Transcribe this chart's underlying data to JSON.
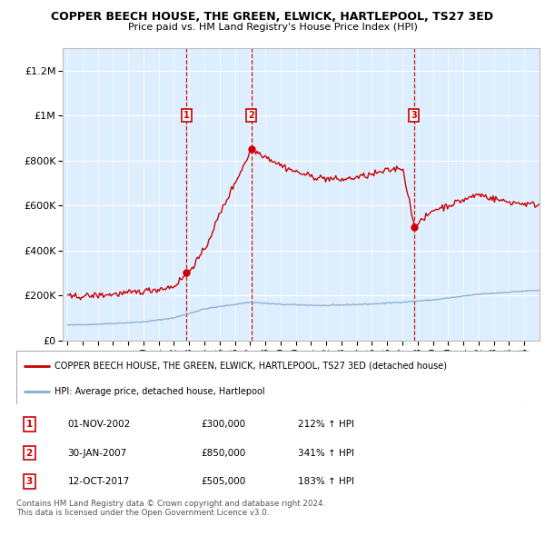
{
  "title": "COPPER BEECH HOUSE, THE GREEN, ELWICK, HARTLEPOOL, TS27 3ED",
  "subtitle": "Price paid vs. HM Land Registry's House Price Index (HPI)",
  "legend_line1": "COPPER BEECH HOUSE, THE GREEN, ELWICK, HARTLEPOOL, TS27 3ED (detached house)",
  "legend_line2": "HPI: Average price, detached house, Hartlepool",
  "transactions": [
    {
      "num": 1,
      "date": "01-NOV-2002",
      "price": 300000,
      "pct": "212%",
      "dir": "↑"
    },
    {
      "num": 2,
      "date": "30-JAN-2007",
      "price": 850000,
      "pct": "341%",
      "dir": "↑"
    },
    {
      "num": 3,
      "date": "12-OCT-2017",
      "price": 505000,
      "pct": "183%",
      "dir": "↑"
    }
  ],
  "footer": "Contains HM Land Registry data © Crown copyright and database right 2024.\nThis data is licensed under the Open Government Licence v3.0.",
  "ylim": [
    0,
    1300000
  ],
  "yticks": [
    0,
    200000,
    400000,
    600000,
    800000,
    1000000,
    1200000
  ],
  "ytick_labels": [
    "£0",
    "£200K",
    "£400K",
    "£600K",
    "£800K",
    "£1M",
    "£1.2M"
  ],
  "red_color": "#cc0000",
  "blue_color": "#88aacc",
  "bg_color": "#ddeeff",
  "grid_color": "#ffffff",
  "vline_color": "#cc0000",
  "box_bg": "#ffffff",
  "t1_year": 2002.833,
  "t2_year": 2007.083,
  "t3_year": 2017.75,
  "t1_price": 300000,
  "t2_price": 850000,
  "t3_price": 505000,
  "xmin": 1994.7,
  "xmax": 2026.0
}
